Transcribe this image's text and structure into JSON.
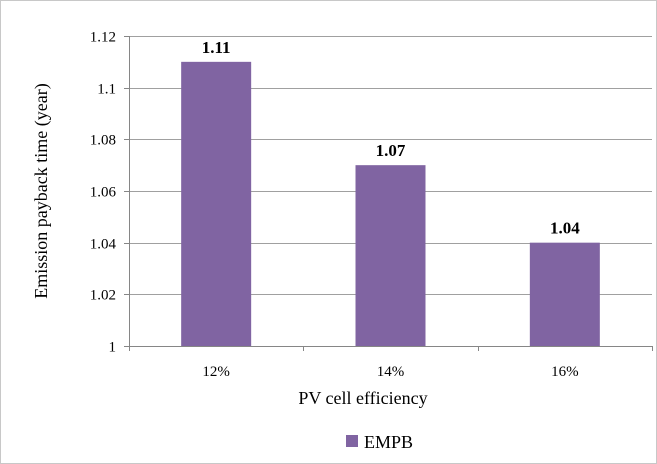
{
  "chart_data": {
    "type": "bar",
    "categories": [
      "12%",
      "14%",
      "16%"
    ],
    "series": [
      {
        "name": "EMPB",
        "values": [
          1.11,
          1.07,
          1.04
        ],
        "color": "#8064a2"
      }
    ],
    "data_labels": [
      "1.11",
      "1.07",
      "1.04"
    ],
    "xlabel": "PV cell efficiency",
    "ylabel": "Emission payback time (year)",
    "ylim": [
      1,
      1.12
    ],
    "yticks": [
      1,
      1.02,
      1.04,
      1.06,
      1.08,
      1.1,
      1.12
    ],
    "ytick_labels": [
      "1",
      "1.02",
      "1.04",
      "1.06",
      "1.08",
      "1.1",
      "1.12"
    ],
    "grid": true,
    "legend": {
      "position": "bottom",
      "entries": [
        "EMPB"
      ]
    },
    "colors": {
      "bar": "#8064a2",
      "grid": "#a0a0a0",
      "axis": "#868686"
    }
  }
}
